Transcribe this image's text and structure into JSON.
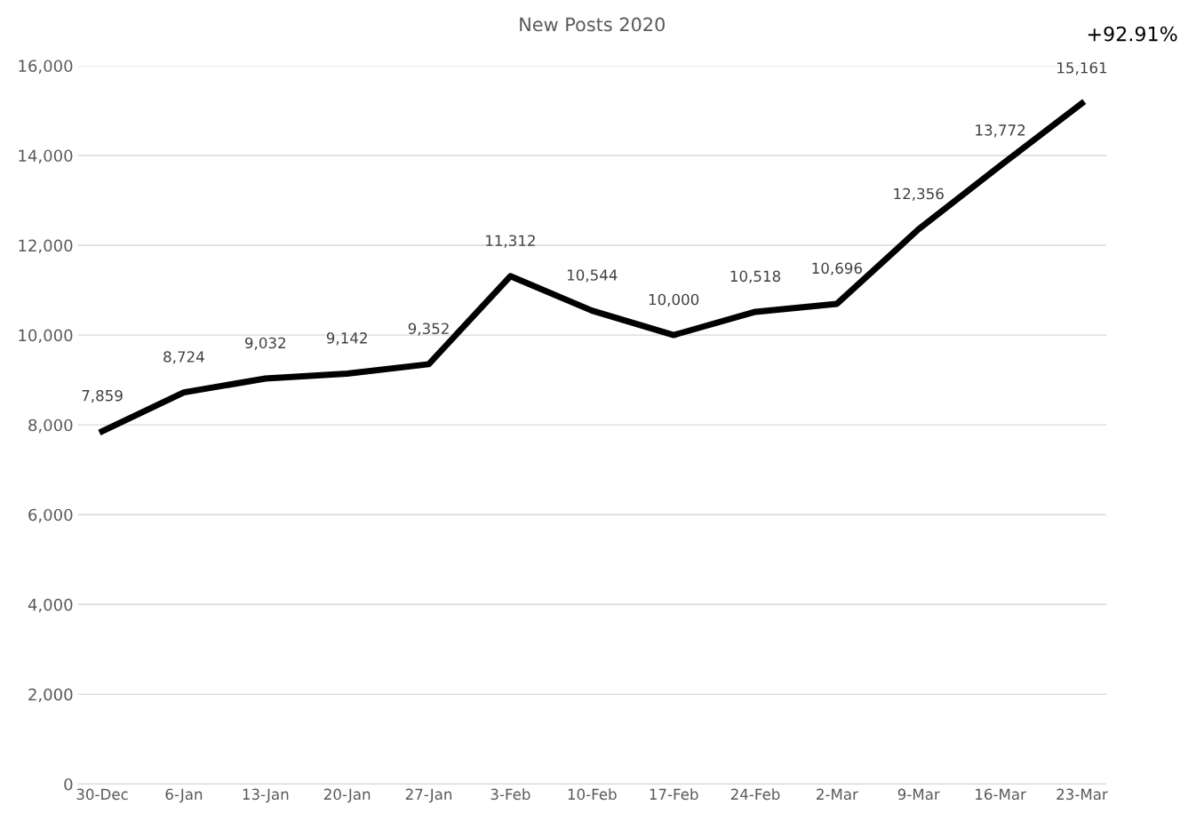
{
  "chart_data": {
    "type": "line",
    "title": "New Posts 2020",
    "categories": [
      "30-Dec",
      "6-Jan",
      "13-Jan",
      "20-Jan",
      "27-Jan",
      "3-Feb",
      "10-Feb",
      "17-Feb",
      "24-Feb",
      "2-Mar",
      "9-Mar",
      "16-Mar",
      "23-Mar"
    ],
    "series": [
      {
        "color": "#000000",
        "values": [
          7859,
          8724,
          9032,
          9142,
          9352,
          11312,
          10544,
          10000,
          10518,
          10696,
          12356,
          13772,
          15161
        ]
      }
    ],
    "value_labels": [
      "7,859",
      "8,724",
      "9,032",
      "9,142",
      "9,352",
      "11,312",
      "10,544",
      "10,000",
      "10,518",
      "10,696",
      "12,356",
      "13,772",
      "15,161"
    ],
    "annotations": [
      "+92.91%"
    ],
    "ylim": [
      0,
      16000
    ],
    "yticks": [
      0,
      {
        "value": 2000,
        "label": "2,000"
      },
      {
        "value": 4000,
        "label": "4,000"
      },
      {
        "value": 6000,
        "label": "6,000"
      },
      {
        "value": 8000,
        "label": "8,000"
      },
      {
        "value": 10000,
        "label": "10,000"
      },
      {
        "value": 12000,
        "label": "12,000"
      },
      {
        "value": 14000,
        "label": "14,000"
      },
      {
        "value": 16000,
        "label": "16,000"
      }
    ],
    "grid": "y",
    "marker": "none",
    "line_style": "solid"
  }
}
